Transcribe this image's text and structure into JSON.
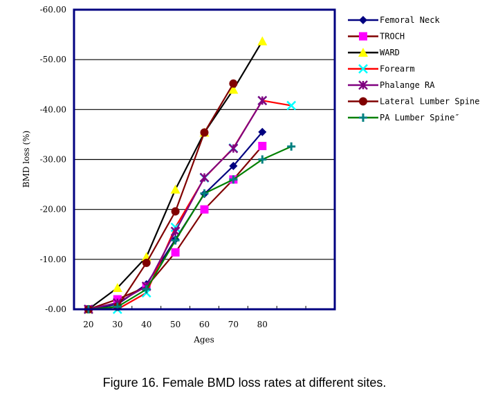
{
  "caption": "Figure 16. Female BMD loss rates at different sites.",
  "chart_data": {
    "type": "line",
    "title": "",
    "xlabel": "Ages",
    "ylabel": "BMD loss (%)",
    "categories": [
      "20",
      "30",
      "40",
      "50",
      "60",
      "70",
      "80",
      ""
    ],
    "ylim": [
      0,
      -60
    ],
    "yticks": [
      "-0.00",
      "-10.00",
      "-20.00",
      "-30.00",
      "-40.00",
      "-50.00",
      "-60.00"
    ],
    "ytick_values": [
      0,
      -10,
      -20,
      -30,
      -40,
      -50,
      -60
    ],
    "grid": "horizontal",
    "legend_position": "right",
    "series": [
      {
        "name": "Femoral Neck",
        "line_color": "#000080",
        "marker": "diamond",
        "marker_color": "#000080",
        "values": [
          0,
          -1.0,
          -5.0,
          -14.0,
          -23.1,
          -28.7,
          -35.5,
          null
        ]
      },
      {
        "name": "TROCH",
        "line_color": "#800000",
        "marker": "square",
        "marker_color": "#ff00ff",
        "values": [
          0,
          -2.0,
          -4.5,
          -11.4,
          -20.0,
          -26.0,
          -32.7,
          null
        ]
      },
      {
        "name": "WARD",
        "line_color": "#000000",
        "marker": "triangle",
        "marker_color": "#ffff00",
        "values": [
          0,
          -4.3,
          -10.5,
          -24.0,
          -35.4,
          -44.0,
          -53.7,
          null
        ]
      },
      {
        "name": "Forearm",
        "line_color": "#ff0000",
        "marker": "x",
        "marker_color": "#00ffff",
        "values": [
          0,
          0,
          -3.3,
          -16.4,
          -26.3,
          -32.3,
          -41.8,
          -40.8
        ]
      },
      {
        "name": "Phalange RA",
        "line_color": "#800080",
        "marker": "star",
        "marker_color": "#800080",
        "values": [
          0,
          -1.3,
          -4.6,
          -15.6,
          -26.4,
          -32.2,
          -41.8,
          null
        ]
      },
      {
        "name": "Lateral Lumber Spine",
        "line_color": "#800000",
        "marker": "circle",
        "marker_color": "#800000",
        "values": [
          0,
          -0.5,
          -9.3,
          -19.6,
          -35.4,
          -45.2,
          null,
          null
        ]
      },
      {
        "name": "PA Lumber Spine″",
        "line_color": "#008000",
        "marker": "plus",
        "marker_color": "#008080",
        "values": [
          0,
          -0.5,
          -4.0,
          -13.8,
          -23.2,
          -26.0,
          -30.0,
          -32.6
        ]
      }
    ]
  }
}
